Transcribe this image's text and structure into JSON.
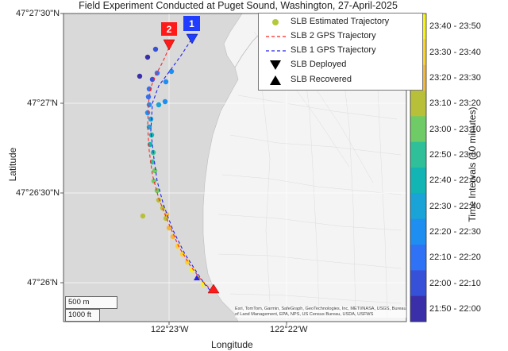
{
  "title": "Field Experiment Conducted at Puget Sound, Washington, 27-April-2025",
  "axes": {
    "xlabel": "Longitude",
    "ylabel": "Latitude",
    "lat_ticks": [
      "47°27'30\"N",
      "47°27'N",
      "47°26'30\"N",
      "47°26'N"
    ],
    "lon_ticks": [
      "122°23'W",
      "122°22'W"
    ]
  },
  "legend": {
    "items": [
      {
        "label": "SLB Estimated Trajectory",
        "marker": "dot",
        "color": "#b5c83a"
      },
      {
        "label": "SLB 2 GPS Trajectory",
        "marker": "dashed-line",
        "color": "#ff2222"
      },
      {
        "label": "SLB 1 GPS Trajectory",
        "marker": "dashed-line",
        "color": "#2222ee"
      },
      {
        "label": "SLB Deployed",
        "marker": "down-triangle",
        "color": "#000000"
      },
      {
        "label": "SLB Recovered",
        "marker": "up-triangle",
        "color": "#000000"
      }
    ]
  },
  "markers": {
    "slb2_deployed": {
      "badge": "2",
      "color": "#ff1a1a"
    },
    "slb1_deployed": {
      "badge": "1",
      "color": "#1f3cff"
    }
  },
  "colorbar": {
    "label": "Time Intervals (10 minutes)",
    "intervals": [
      {
        "label": "23:40 - 23:50",
        "color": "#f7f115"
      },
      {
        "label": "23:30 - 23:40",
        "color": "#fbd22a"
      },
      {
        "label": "23:20 - 23:30",
        "color": "#f2b63c"
      },
      {
        "label": "23:10 - 23:20",
        "color": "#b8c03a"
      },
      {
        "label": "23:00 - 23:10",
        "color": "#6ecb66"
      },
      {
        "label": "22:50 - 23:00",
        "color": "#2fc09a"
      },
      {
        "label": "22:40 - 22:50",
        "color": "#12b5b3"
      },
      {
        "label": "22:30 - 22:40",
        "color": "#1aa3d6"
      },
      {
        "label": "22:20 - 22:30",
        "color": "#1e8ef0"
      },
      {
        "label": "22:10 - 22:20",
        "color": "#2f72f5"
      },
      {
        "label": "22:00 - 22:10",
        "color": "#3651d8"
      },
      {
        "label": "21:50 - 22:00",
        "color": "#3a2fa8"
      }
    ]
  },
  "scalebar": {
    "metric": "500 m",
    "imperial": "1000 ft"
  },
  "attribution": "Esri, TomTom, Garmin, SafeGraph, GeoTechnologies, Inc, METI/NASA, USGS, Bureau of Land Management, EPA, NPS, US Census Bureau, USDA, USFWS",
  "colors": {
    "water": "#d8d8d8",
    "land": "#f6f6f6",
    "trajectory_slb2": "#ff2222",
    "trajectory_slb1": "#2222ee"
  }
}
